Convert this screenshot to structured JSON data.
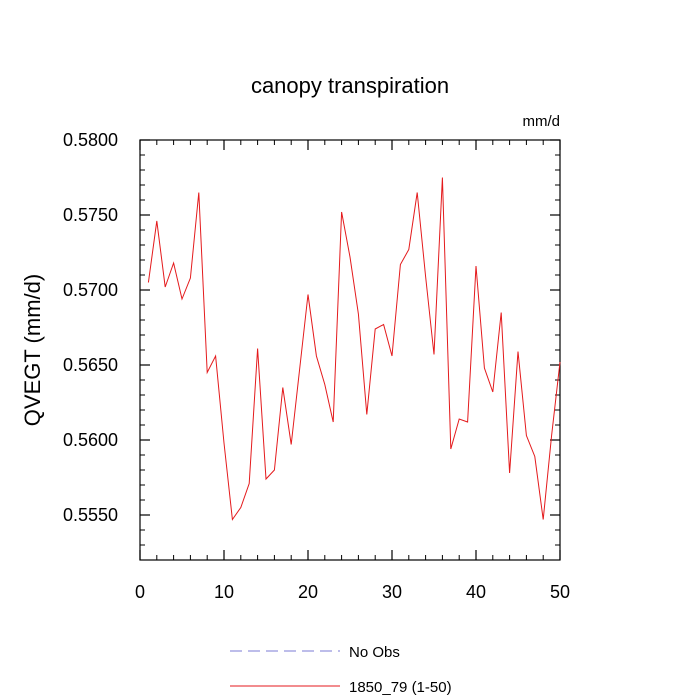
{
  "chart_data": {
    "type": "line",
    "title": "canopy transpiration",
    "units_label": "mm/d",
    "ylabel": "QVEGT  (mm/d)",
    "xlabel": "",
    "xlim": [
      0,
      50
    ],
    "ylim": [
      0.552,
      0.58
    ],
    "x_ticks": [
      0,
      10,
      20,
      30,
      40,
      50
    ],
    "x_tick_labels": [
      "0",
      "10",
      "20",
      "30",
      "40",
      "50"
    ],
    "y_ticks": [
      0.555,
      0.56,
      0.565,
      0.57,
      0.575,
      0.58
    ],
    "y_tick_labels": [
      "0.5550",
      "0.5600",
      "0.5650",
      "0.5700",
      "0.5750",
      "0.5800"
    ],
    "grid": false,
    "legend_position": "bottom-center",
    "legend": [
      {
        "label": "No Obs",
        "color": "#7b7bd6",
        "style": "dashed"
      },
      {
        "label": "1850_79 (1-50)",
        "color": "#e41a1c",
        "style": "solid"
      }
    ],
    "series": [
      {
        "name": "1850_79 (1-50)",
        "color": "#e41a1c",
        "x": [
          1,
          2,
          3,
          4,
          5,
          6,
          7,
          8,
          9,
          10,
          11,
          12,
          13,
          14,
          15,
          16,
          17,
          18,
          19,
          20,
          21,
          22,
          23,
          24,
          25,
          26,
          27,
          28,
          29,
          30,
          31,
          32,
          33,
          34,
          35,
          36,
          37,
          38,
          39,
          40,
          41,
          42,
          43,
          44,
          45,
          46,
          47,
          48,
          49,
          50
        ],
        "values": [
          0.5705,
          0.5746,
          0.5702,
          0.5718,
          0.5694,
          0.5708,
          0.5765,
          0.5645,
          0.5656,
          0.5598,
          0.5547,
          0.5555,
          0.5571,
          0.5661,
          0.5574,
          0.558,
          0.5635,
          0.5597,
          0.5647,
          0.5697,
          0.5656,
          0.5637,
          0.5612,
          0.5752,
          0.5722,
          0.5684,
          0.5617,
          0.5674,
          0.5677,
          0.5656,
          0.5717,
          0.5727,
          0.5765,
          0.5709,
          0.5657,
          0.5775,
          0.5594,
          0.5614,
          0.5612,
          0.5716,
          0.5648,
          0.5632,
          0.5685,
          0.5578,
          0.5659,
          0.5603,
          0.5589,
          0.5547,
          0.5603,
          0.5652
        ]
      }
    ]
  }
}
